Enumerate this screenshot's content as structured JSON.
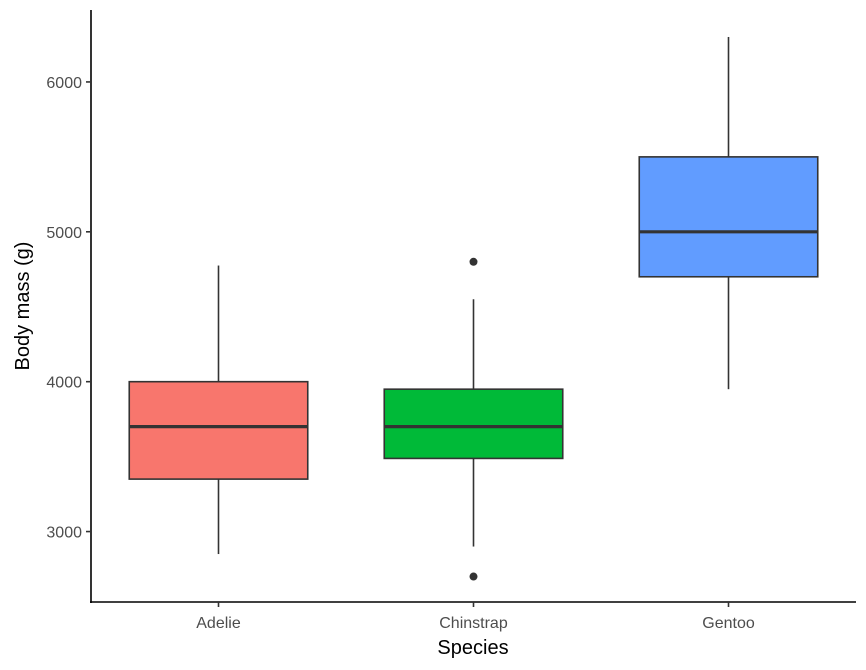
{
  "chart_data": {
    "type": "boxplot",
    "xlabel": "Species",
    "ylabel": "Body mass (g)",
    "ylim": [
      2530,
      6480
    ],
    "yticks": [
      3000,
      4000,
      5000,
      6000
    ],
    "grid": false,
    "legend": "none",
    "categories": [
      "Adelie",
      "Chinstrap",
      "Gentoo"
    ],
    "boxes": [
      {
        "category": "Adelie",
        "whisker_low": 2850,
        "q1": 3350,
        "median": 3700,
        "q3": 4000,
        "whisker_high": 4775,
        "outliers": [],
        "color": "#F8766D"
      },
      {
        "category": "Chinstrap",
        "whisker_low": 2900,
        "q1": 3488,
        "median": 3700,
        "q3": 3950,
        "whisker_high": 4550,
        "outliers": [
          2700,
          4800
        ],
        "color": "#00BA38"
      },
      {
        "category": "Gentoo",
        "whisker_low": 3950,
        "q1": 4700,
        "median": 5000,
        "q3": 5500,
        "whisker_high": 6300,
        "outliers": [],
        "color": "#619CFF"
      }
    ]
  }
}
